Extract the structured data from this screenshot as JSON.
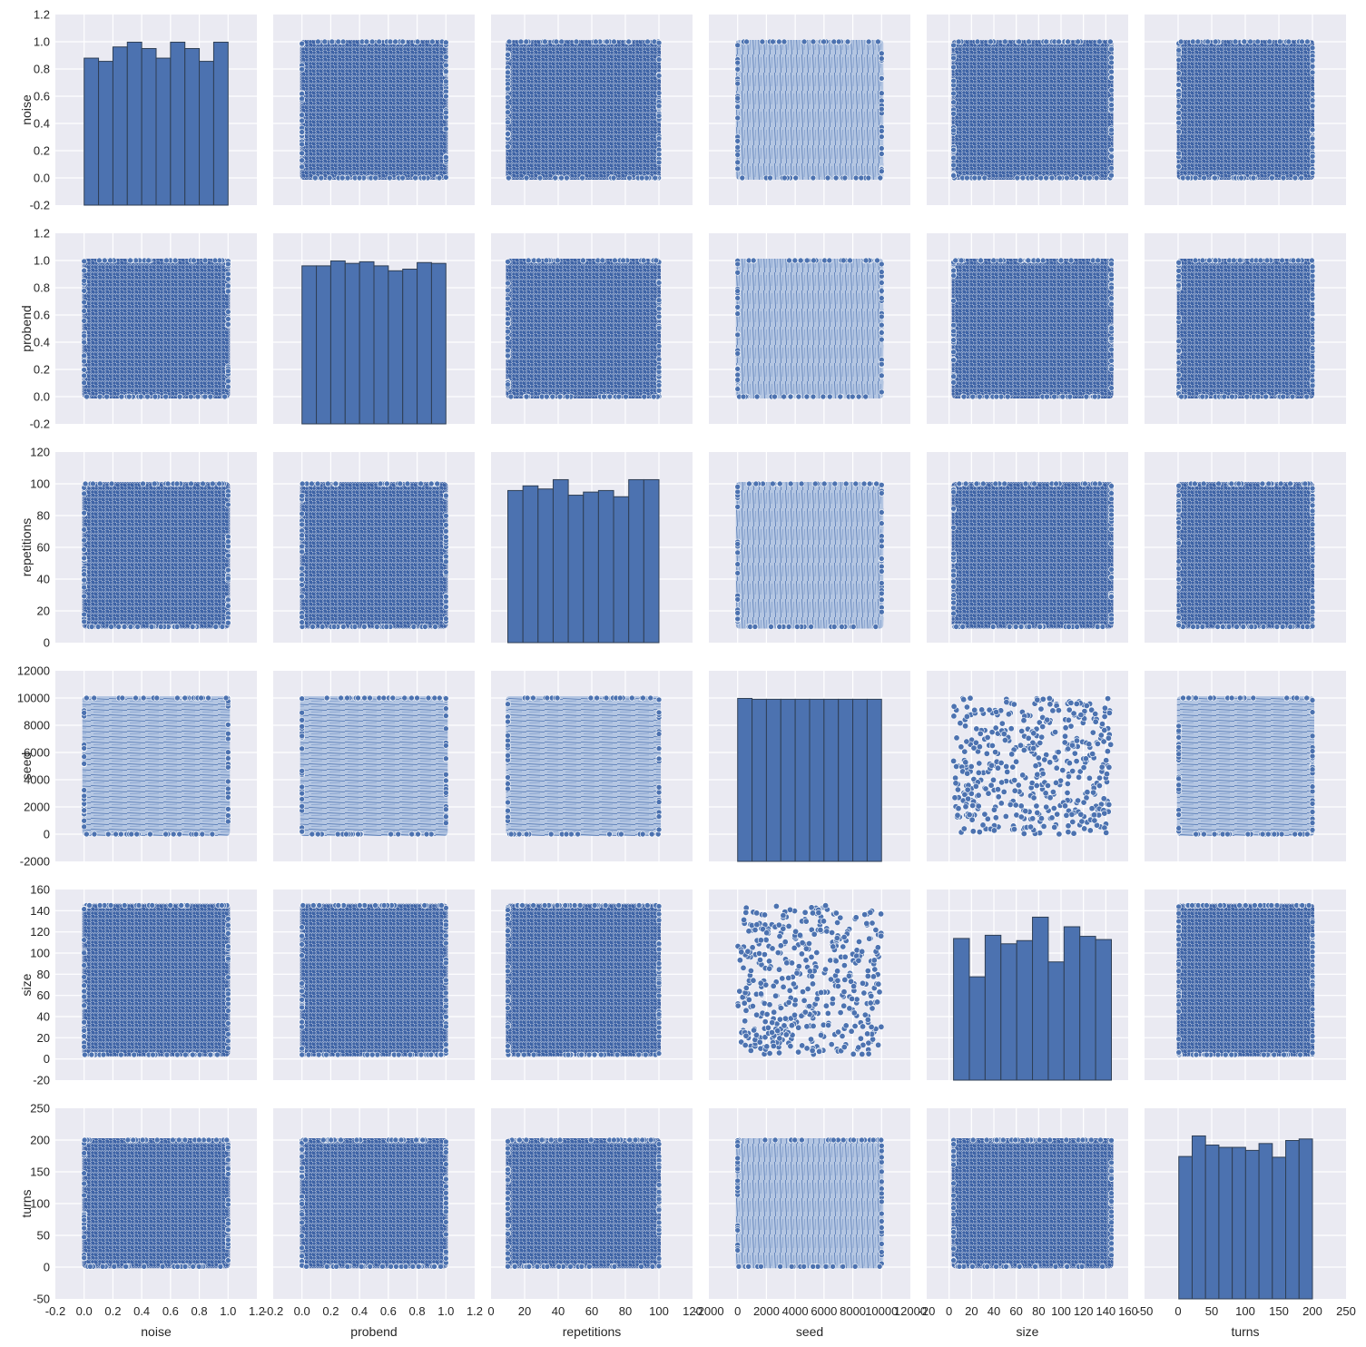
{
  "chart_data": {
    "type": "pairplot",
    "variables": [
      {
        "name": "noise",
        "range": [
          -0.2,
          1.2
        ],
        "ticks": [
          -0.2,
          0.0,
          0.2,
          0.4,
          0.6,
          0.8,
          1.0,
          1.2
        ],
        "decimals": 1,
        "data_min": 0.0,
        "data_max": 1.0
      },
      {
        "name": "probend",
        "range": [
          -0.2,
          1.2
        ],
        "ticks": [
          -0.2,
          0.0,
          0.2,
          0.4,
          0.6,
          0.8,
          1.0,
          1.2
        ],
        "decimals": 1,
        "data_min": 0.0,
        "data_max": 1.0
      },
      {
        "name": "repetitions",
        "range": [
          0,
          120
        ],
        "ticks": [
          0,
          20,
          40,
          60,
          80,
          100,
          120
        ],
        "decimals": 0,
        "data_min": 10,
        "data_max": 100
      },
      {
        "name": "seed",
        "range": [
          -2000,
          12000
        ],
        "ticks": [
          -2000,
          0,
          2000,
          4000,
          6000,
          8000,
          10000,
          12000
        ],
        "decimals": 0,
        "data_min": 0,
        "data_max": 9999
      },
      {
        "name": "size",
        "range": [
          -20,
          160
        ],
        "ticks": [
          -20,
          0,
          20,
          40,
          60,
          80,
          100,
          120,
          140,
          160
        ],
        "decimals": 0,
        "data_min": 4,
        "data_max": 145
      },
      {
        "name": "turns",
        "range": [
          -50,
          250
        ],
        "ticks": [
          -50,
          0,
          50,
          100,
          150,
          200,
          250
        ],
        "decimals": 0,
        "data_min": 1,
        "data_max": 200
      }
    ],
    "histograms": {
      "noise": {
        "bins": 10,
        "heights": [
          0.92,
          0.9,
          0.99,
          1.02,
          0.98,
          0.92,
          1.02,
          0.98,
          0.9,
          1.02
        ]
      },
      "probend": {
        "bins": 10,
        "heights": [
          0.96,
          0.96,
          0.99,
          0.975,
          0.985,
          0.96,
          0.93,
          0.94,
          0.98,
          0.975
        ]
      },
      "repetitions": {
        "bins": 10,
        "heights": [
          98,
          101,
          99,
          105,
          95,
          97,
          98,
          94,
          105,
          105
        ]
      },
      "seed": {
        "bins": 10,
        "heights": [
          9700,
          9650,
          9650,
          9650,
          9650,
          9650,
          9650,
          9650,
          9650,
          9650
        ]
      },
      "size": {
        "bins": 10,
        "heights": [
          133,
          97,
          136,
          128,
          131,
          153,
          111,
          144,
          135,
          132
        ]
      },
      "turns": {
        "bins": 10,
        "heights": [
          187,
          214,
          202,
          199,
          199,
          195,
          204,
          186,
          208,
          210
        ]
      }
    },
    "scatter": "uniform random point clouds for every off-diagonal pair; dense fields drawn as fills",
    "grid": true,
    "colors": {
      "points": "#4c72b0",
      "bars": "#4c72b0",
      "background": "#eaeaf2",
      "gridline": "#ffffff",
      "dense_light": "#b4c6e2"
    }
  }
}
